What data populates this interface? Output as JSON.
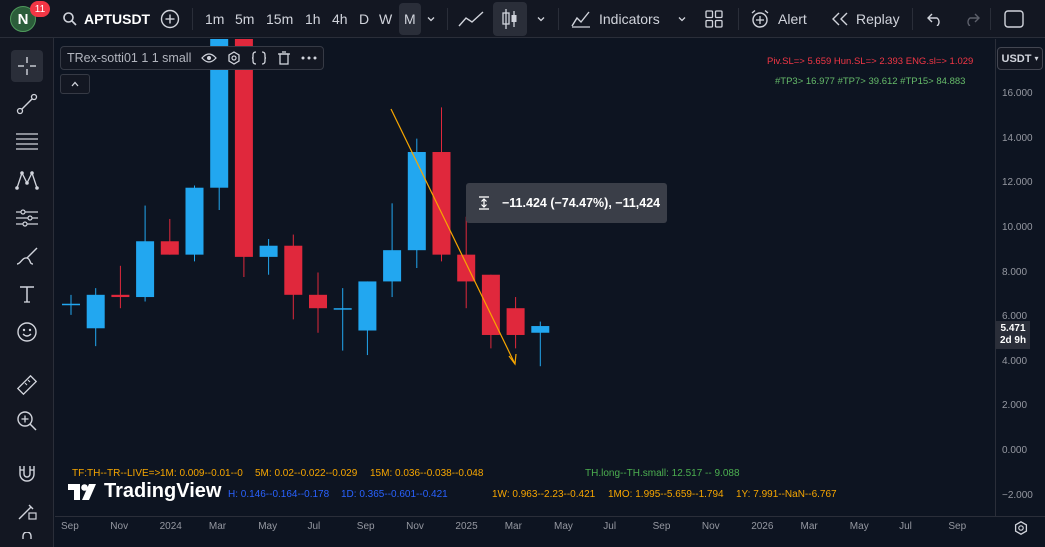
{
  "top": {
    "notification_count": "11",
    "avatar_letter": "N",
    "symbol": "APTUSDT",
    "intervals": [
      "1m",
      "5m",
      "15m",
      "1h",
      "4h",
      "D",
      "W",
      "M"
    ],
    "active_interval": "M",
    "indicators_label": "Indicators",
    "alert_label": "Alert",
    "replay_label": "Replay"
  },
  "legend": {
    "indicator_name": "TRex-sotti01 1 1 small"
  },
  "measure_tooltip": {
    "text": "−11.424 (−74.47%), −11,424"
  },
  "top_right_info": {
    "line1": "Piv.SL=> 5.659  Hun.SL=> 2.393  ENG.sl=> 1.029",
    "line2": "#TP3> 16.977  #TP7> 39.612  #TP15> 84.883"
  },
  "bottom_info": {
    "tf_line": "TF:TH--TR--LIVE=>",
    "m1": "1M: 0.009--0.01--0",
    "m5": "5M: 0.02--0.022--0.029",
    "m15": "15M: 0.036--0.038--0.048",
    "th_long": "TH.long--TH.small: 12.517 -- 9.088",
    "h1": "H: 0.146--0.164--0.178",
    "d1": "1D: 0.365--0.601--0.421",
    "w1": "1W: 0.963--2.23--0.421",
    "mo1": "1MO: 1.995--5.659--1.794",
    "y1": "1Y: 7.991--NaN--6.767"
  },
  "brand": "TradingView",
  "price_axis": {
    "currency": "USDT",
    "labels": [
      "16.000",
      "14.000",
      "12.000",
      "10.000",
      "8.000",
      "6.000",
      "4.000",
      "2.000",
      "0.000",
      "−2.000"
    ],
    "current_price": "5.471",
    "countdown": "2d 9h"
  },
  "time_axis": {
    "labels": [
      "Sep",
      "Nov",
      "2024",
      "Mar",
      "May",
      "Jul",
      "Sep",
      "Nov",
      "2025",
      "Mar",
      "May",
      "Jul",
      "Sep",
      "Nov",
      "2026",
      "Mar",
      "May",
      "Jul",
      "Sep"
    ]
  },
  "colors": {
    "up": "#22a7f0",
    "down": "#e0283c",
    "trend": "#f7a600"
  },
  "candles": [
    {
      "month": "2023-08",
      "o": 6.6,
      "h": 7.0,
      "l": 6.1,
      "c": 6.6
    },
    {
      "month": "2023-09",
      "o": 5.5,
      "h": 7.3,
      "l": 4.7,
      "c": 7.0
    },
    {
      "month": "2023-10",
      "o": 7.0,
      "h": 8.3,
      "l": 6.4,
      "c": 6.9
    },
    {
      "month": "2023-11",
      "o": 6.9,
      "h": 11.0,
      "l": 6.7,
      "c": 9.4
    },
    {
      "month": "2023-12",
      "o": 9.4,
      "h": 10.4,
      "l": 8.8,
      "c": 8.8
    },
    {
      "month": "2024-01",
      "o": 8.8,
      "h": 11.9,
      "l": 8.5,
      "c": 11.8
    },
    {
      "month": "2024-02",
      "o": 11.8,
      "h": 23.0,
      "l": 10.8,
      "c": 18.7
    },
    {
      "month": "2024-03",
      "o": 18.7,
      "h": 19.9,
      "l": 7.8,
      "c": 8.7
    },
    {
      "month": "2024-04",
      "o": 8.7,
      "h": 9.5,
      "l": 7.9,
      "c": 9.2
    },
    {
      "month": "2024-05",
      "o": 9.2,
      "h": 9.7,
      "l": 5.9,
      "c": 7.0
    },
    {
      "month": "2024-06",
      "o": 7.0,
      "h": 8.0,
      "l": 5.3,
      "c": 6.4
    },
    {
      "month": "2024-07",
      "o": 6.4,
      "h": 7.3,
      "l": 4.5,
      "c": 6.4
    },
    {
      "month": "2024-08",
      "o": 5.4,
      "h": 7.6,
      "l": 4.3,
      "c": 7.6
    },
    {
      "month": "2024-09",
      "o": 7.6,
      "h": 11.1,
      "l": 6.9,
      "c": 9.0
    },
    {
      "month": "2024-10",
      "o": 9.0,
      "h": 14.0,
      "l": 8.2,
      "c": 13.4
    },
    {
      "month": "2024-11",
      "o": 13.4,
      "h": 15.4,
      "l": 8.5,
      "c": 8.8
    },
    {
      "month": "2024-12",
      "o": 8.8,
      "h": 10.5,
      "l": 6.4,
      "c": 7.6
    },
    {
      "month": "2025-01",
      "o": 7.9,
      "h": 7.9,
      "l": 4.6,
      "c": 5.2
    },
    {
      "month": "2025-02",
      "o": 6.4,
      "h": 6.9,
      "l": 4.6,
      "c": 5.2
    },
    {
      "month": "2025-03",
      "o": 5.3,
      "h": 5.8,
      "l": 3.8,
      "c": 5.6
    }
  ]
}
